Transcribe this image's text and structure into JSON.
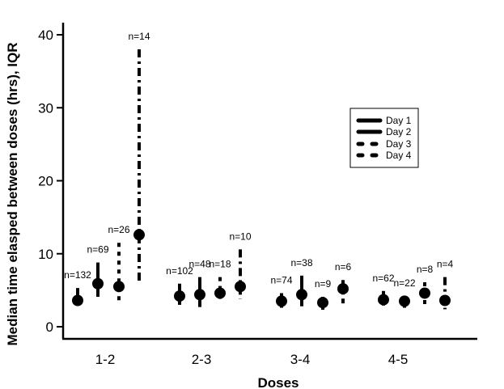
{
  "chart_data": {
    "type": "scatter",
    "subtype": "median-with-iqr-range",
    "title": "",
    "xlabel": "Doses",
    "ylabel": "Median time elasped between doses (hrs), IQR",
    "ylim": [
      0,
      40
    ],
    "yticks": [
      0,
      10,
      20,
      30,
      40
    ],
    "grid": false,
    "categories": [
      "1-2",
      "2-3",
      "3-4",
      "4-5"
    ],
    "legend": {
      "placement": "center-right",
      "entries": [
        "Day 1",
        "Day 2",
        "Day 3",
        "Day 4"
      ]
    },
    "series": [
      {
        "name": "Day 1",
        "style": "solid",
        "median": [
          3.6,
          4.2,
          3.5,
          3.7
        ],
        "q1": [
          2.9,
          3.0,
          2.6,
          2.9
        ],
        "q3": [
          5.3,
          5.9,
          4.6,
          4.9
        ],
        "n_labels": [
          "n=132",
          "n=102",
          "n=74",
          "n=62"
        ]
      },
      {
        "name": "Day 2",
        "style": "solid",
        "median": [
          5.9,
          4.4,
          4.4,
          3.5
        ],
        "q1": [
          4.1,
          2.7,
          2.8,
          2.6
        ],
        "q3": [
          8.8,
          6.8,
          7.0,
          4.2
        ],
        "n_labels": [
          "n=69",
          "n=48",
          "n=38",
          "n=22"
        ]
      },
      {
        "name": "Day 3",
        "style": "dashed",
        "median": [
          5.5,
          4.6,
          3.3,
          4.6
        ],
        "q1": [
          3.2,
          3.2,
          2.1,
          2.7
        ],
        "q3": [
          11.5,
          6.8,
          4.1,
          6.1
        ],
        "n_labels": [
          "n=26",
          "n=18",
          "n=9",
          "n=8"
        ]
      },
      {
        "name": "Day 4",
        "style": "dashdot",
        "median": [
          12.6,
          5.5,
          5.2,
          3.6
        ],
        "q1": [
          6.0,
          3.8,
          3.2,
          2.4
        ],
        "q3": [
          38.0,
          10.6,
          6.4,
          6.8
        ],
        "n_labels": [
          "n=14",
          "n=10",
          "n=6",
          "n=4"
        ]
      }
    ]
  }
}
